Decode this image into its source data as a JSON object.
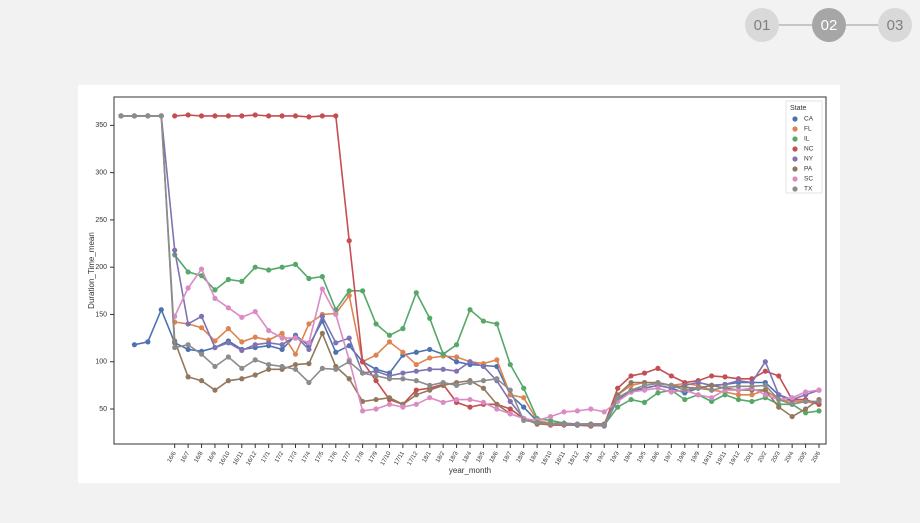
{
  "steps": [
    "01",
    "02",
    "03"
  ],
  "chart_data": {
    "type": "line",
    "xlabel": "year_month",
    "ylabel": "Duration_Time_mean",
    "legend_title": "State",
    "legend": "upper right",
    "categories": [
      null,
      null,
      null,
      null,
      "16/6",
      "16/7",
      "16/8",
      "16/9",
      "16/10",
      "16/11",
      "16/12",
      "17/1",
      "17/2",
      "17/3",
      "17/4",
      "17/5",
      "17/6",
      "17/7",
      "17/8",
      "17/9",
      "17/10",
      "17/11",
      "17/12",
      "18/1",
      "18/2",
      "18/3",
      "18/4",
      "18/5",
      "18/6",
      "18/7",
      "18/8",
      "18/9",
      "18/10",
      "18/11",
      "18/12",
      "19/1",
      "19/2",
      "19/3",
      "19/4",
      "19/5",
      "19/6",
      "19/7",
      "19/8",
      "19/9",
      "19/10",
      "19/11",
      "19/12",
      "20/1",
      "20/2",
      "20/3",
      "20/4",
      "20/5",
      "20/6"
    ],
    "ylim": [
      13,
      380
    ],
    "yticks": [
      50,
      100,
      150,
      200,
      250,
      300,
      350
    ],
    "series": [
      {
        "name": "CA",
        "color": "#4c72b0",
        "values": [
          null,
          118,
          121,
          155,
          120,
          113,
          111,
          115,
          122,
          113,
          115,
          117,
          113,
          128,
          117,
          143,
          110,
          117,
          100,
          92,
          88,
          107,
          110,
          113,
          108,
          100,
          97,
          96,
          95,
          65,
          52,
          37,
          35,
          35,
          34,
          34,
          34,
          60,
          68,
          72,
          75,
          72,
          67,
          72,
          75,
          76,
          78,
          78,
          78,
          65,
          58,
          58,
          58
        ]
      },
      {
        "name": "FL",
        "color": "#dd8452",
        "values": [
          null,
          null,
          null,
          null,
          142,
          140,
          136,
          122,
          135,
          121,
          126,
          123,
          130,
          108,
          140,
          150,
          151,
          170,
          100,
          107,
          121,
          110,
          97,
          104,
          106,
          105,
          100,
          98,
          102,
          65,
          62,
          38,
          35,
          34,
          33,
          33,
          33,
          65,
          75,
          78,
          77,
          75,
          77,
          75,
          70,
          68,
          65,
          65,
          70,
          60,
          58,
          58,
          55
        ]
      },
      {
        "name": "IL",
        "color": "#55a868",
        "values": [
          null,
          null,
          null,
          null,
          213,
          195,
          191,
          176,
          187,
          185,
          200,
          197,
          200,
          203,
          188,
          190,
          155,
          175,
          175,
          140,
          128,
          135,
          173,
          146,
          108,
          118,
          155,
          143,
          140,
          97,
          72,
          40,
          38,
          35,
          33,
          32,
          33,
          52,
          60,
          57,
          67,
          70,
          60,
          65,
          58,
          65,
          60,
          58,
          62,
          55,
          55,
          46,
          48
        ]
      },
      {
        "name": "NC",
        "color": "#c44e52",
        "values": [
          null,
          null,
          null,
          null,
          360,
          361,
          360,
          360,
          360,
          360,
          361,
          360,
          360,
          360,
          359,
          360,
          360,
          228,
          100,
          80,
          60,
          55,
          70,
          72,
          76,
          57,
          52,
          55,
          55,
          50,
          40,
          35,
          33,
          33,
          33,
          32,
          33,
          72,
          85,
          88,
          93,
          85,
          78,
          80,
          85,
          84,
          82,
          82,
          90,
          85,
          60,
          60,
          55
        ]
      },
      {
        "name": "NY",
        "color": "#8172b3",
        "values": [
          360,
          360,
          360,
          360,
          218,
          140,
          148,
          115,
          120,
          112,
          118,
          120,
          118,
          127,
          113,
          148,
          120,
          125,
          88,
          90,
          85,
          88,
          90,
          92,
          92,
          90,
          100,
          95,
          80,
          58,
          40,
          35,
          34,
          34,
          33,
          33,
          32,
          60,
          70,
          72,
          75,
          72,
          75,
          78,
          75,
          76,
          80,
          78,
          100,
          65,
          60,
          65,
          70
        ]
      },
      {
        "name": "PA",
        "color": "#937860",
        "values": [
          360,
          360,
          360,
          360,
          122,
          84,
          80,
          70,
          80,
          82,
          86,
          92,
          92,
          97,
          98,
          130,
          95,
          82,
          58,
          60,
          62,
          55,
          65,
          70,
          75,
          78,
          80,
          72,
          55,
          45,
          40,
          34,
          34,
          34,
          34,
          34,
          34,
          65,
          78,
          78,
          78,
          75,
          73,
          72,
          75,
          72,
          70,
          70,
          70,
          52,
          42,
          50,
          60
        ]
      },
      {
        "name": "SC",
        "color": "#da8bc3",
        "values": [
          null,
          null,
          null,
          null,
          148,
          178,
          198,
          167,
          157,
          147,
          153,
          133,
          125,
          125,
          120,
          177,
          150,
          102,
          48,
          50,
          55,
          52,
          55,
          62,
          57,
          60,
          60,
          57,
          50,
          45,
          40,
          38,
          42,
          47,
          48,
          50,
          47,
          58,
          68,
          70,
          72,
          68,
          70,
          65,
          62,
          70,
          70,
          72,
          65,
          60,
          62,
          68,
          70
        ]
      },
      {
        "name": "TX",
        "color": "#8c8c8c",
        "values": [
          360,
          360,
          360,
          360,
          115,
          118,
          108,
          95,
          105,
          93,
          102,
          97,
          95,
          92,
          78,
          93,
          92,
          100,
          88,
          85,
          82,
          82,
          80,
          75,
          78,
          75,
          78,
          80,
          82,
          70,
          38,
          36,
          34,
          34,
          34,
          33,
          33,
          62,
          70,
          75,
          77,
          75,
          70,
          72,
          70,
          73,
          74,
          74,
          75,
          60,
          55,
          58,
          58
        ]
      }
    ]
  }
}
